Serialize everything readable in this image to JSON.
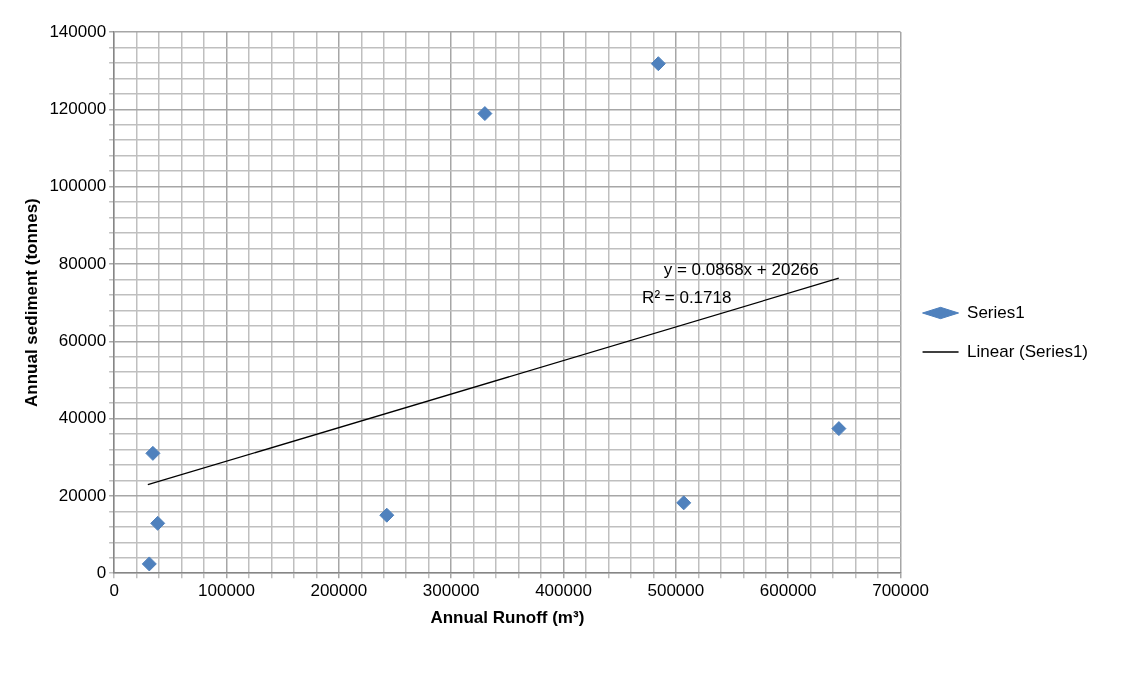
{
  "chart_data": {
    "type": "scatter",
    "xlabel": "Annual Runoff (m³)",
    "ylabel": "Annual sediment (tonnes)",
    "annotations": [
      "y = 0.0868x + 20266",
      "R² = 0.1718"
    ],
    "series": [
      {
        "name": "Series1",
        "type": "scatter",
        "color": "#4f81bd",
        "marker": "diamond",
        "x": [
          31300,
          38800,
          34500,
          242700,
          330000,
          484400,
          507000,
          645100
        ],
        "values": [
          2400,
          12900,
          31000,
          15000,
          118900,
          131800,
          18200,
          37400
        ]
      },
      {
        "name": "Linear (Series1)",
        "type": "line",
        "color": "#000000",
        "marker": "none",
        "line_style": "solid",
        "x": [
          30000,
          645000
        ],
        "values": [
          22900,
          76300
        ]
      }
    ],
    "xlim": [
      0,
      700000
    ],
    "xticks": [
      0,
      {
        "value": 20000,
        "label": null
      },
      {
        "value": 40000,
        "label": null
      },
      {
        "value": 60000,
        "label": null
      },
      {
        "value": 80000,
        "label": null
      },
      100000,
      {
        "value": 120000,
        "label": null
      },
      {
        "value": 140000,
        "label": null
      },
      {
        "value": 160000,
        "label": null
      },
      {
        "value": 180000,
        "label": null
      },
      200000,
      {
        "value": 220000,
        "label": null
      },
      {
        "value": 240000,
        "label": null
      },
      {
        "value": 260000,
        "label": null
      },
      {
        "value": 280000,
        "label": null
      },
      300000,
      {
        "value": 320000,
        "label": null
      },
      {
        "value": 340000,
        "label": null
      },
      {
        "value": 360000,
        "label": null
      },
      {
        "value": 380000,
        "label": null
      },
      400000,
      {
        "value": 420000,
        "label": null
      },
      {
        "value": 440000,
        "label": null
      },
      {
        "value": 460000,
        "label": null
      },
      {
        "value": 480000,
        "label": null
      },
      500000,
      {
        "value": 520000,
        "label": null
      },
      {
        "value": 540000,
        "label": null
      },
      {
        "value": 560000,
        "label": null
      },
      {
        "value": 580000,
        "label": null
      },
      600000,
      {
        "value": 620000,
        "label": null
      },
      {
        "value": 640000,
        "label": null
      },
      {
        "value": 660000,
        "label": null
      },
      {
        "value": 680000,
        "label": null
      },
      700000
    ],
    "ylim": [
      0,
      140000
    ],
    "yticks": [
      0,
      {
        "value": 4000,
        "label": null
      },
      {
        "value": 8000,
        "label": null
      },
      {
        "value": 12000,
        "label": null
      },
      {
        "value": 16000,
        "label": null
      },
      20000,
      {
        "value": 24000,
        "label": null
      },
      {
        "value": 28000,
        "label": null
      },
      {
        "value": 32000,
        "label": null
      },
      {
        "value": 36000,
        "label": null
      },
      40000,
      {
        "value": 44000,
        "label": null
      },
      {
        "value": 48000,
        "label": null
      },
      {
        "value": 52000,
        "label": null
      },
      {
        "value": 56000,
        "label": null
      },
      60000,
      {
        "value": 64000,
        "label": null
      },
      {
        "value": 68000,
        "label": null
      },
      {
        "value": 72000,
        "label": null
      },
      {
        "value": 76000,
        "label": null
      },
      80000,
      {
        "value": 84000,
        "label": null
      },
      {
        "value": 88000,
        "label": null
      },
      {
        "value": 92000,
        "label": null
      },
      {
        "value": 96000,
        "label": null
      },
      100000,
      {
        "value": 104000,
        "label": null
      },
      {
        "value": 108000,
        "label": null
      },
      {
        "value": 112000,
        "label": null
      },
      {
        "value": 116000,
        "label": null
      },
      120000,
      {
        "value": 124000,
        "label": null
      },
      {
        "value": 128000,
        "label": null
      },
      {
        "value": 132000,
        "label": null
      },
      {
        "value": 136000,
        "label": null
      },
      140000
    ],
    "grid": true,
    "legend": "right"
  }
}
